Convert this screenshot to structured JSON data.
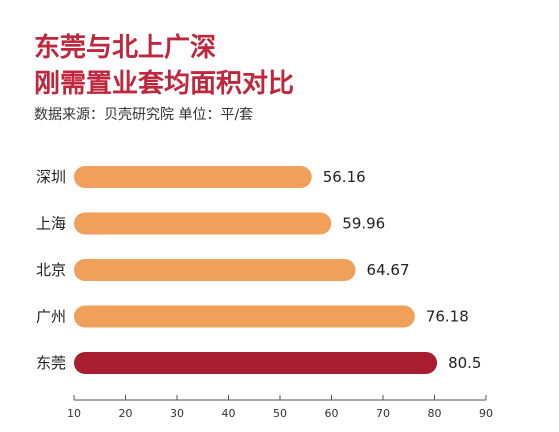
{
  "title": {
    "line1": "东莞与北上广深",
    "line2": "刚需置业套均面积对比"
  },
  "source": "数据来源：贝壳研究院  单位：平/套",
  "colors": {
    "title": "#c0273c",
    "bar_default": "#f0a05a",
    "bar_highlight": "#a81e30"
  },
  "chart_data": {
    "type": "bar",
    "orientation": "horizontal",
    "categories": [
      "深圳",
      "上海",
      "北京",
      "广州",
      "东莞"
    ],
    "values": [
      56.16,
      59.96,
      64.67,
      76.18,
      80.5
    ],
    "value_labels": [
      "56.16",
      "59.96",
      "64.67",
      "76.18",
      "80.5"
    ],
    "highlight": "东莞",
    "xlim": [
      10,
      90
    ],
    "xticks": [
      10,
      20,
      30,
      40,
      50,
      60,
      70,
      80,
      90
    ],
    "grid": false
  }
}
